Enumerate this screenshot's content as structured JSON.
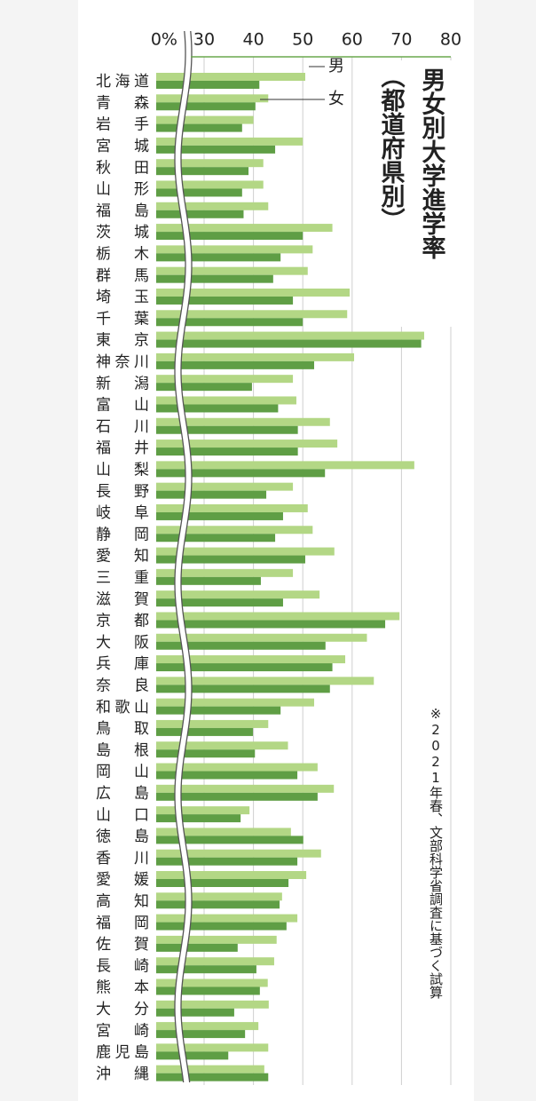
{
  "chart_data": {
    "type": "bar",
    "orientation": "horizontal",
    "title": "男女別大学進学率",
    "subtitle": "（都道府県別）",
    "note": "※2021年春、文部科学省調査に基づく試算",
    "categories": [
      "北海道",
      "青森",
      "岩手",
      "宮城",
      "秋田",
      "山形",
      "福島",
      "茨城",
      "栃木",
      "群馬",
      "埼玉",
      "千葉",
      "東京",
      "神奈川",
      "新潟",
      "富山",
      "石川",
      "福井",
      "山梨",
      "長野",
      "岐阜",
      "静岡",
      "愛知",
      "三重",
      "滋賀",
      "京都",
      "大阪",
      "兵庫",
      "奈良",
      "和歌山",
      "鳥取",
      "島根",
      "岡山",
      "広島",
      "山口",
      "徳島",
      "香川",
      "愛媛",
      "高知",
      "福岡",
      "佐賀",
      "長崎",
      "熊本",
      "大分",
      "宮崎",
      "鹿児島",
      "沖縄"
    ],
    "series": [
      {
        "name": "男",
        "color": "#b3d785",
        "values": [
          50.5,
          43,
          40,
          50,
          42,
          42,
          43,
          56,
          52,
          51,
          59.5,
          59,
          74.6,
          60.4,
          48,
          48.7,
          55.5,
          57,
          72.6,
          48,
          51,
          52,
          56.4,
          48,
          53.4,
          69.6,
          63,
          58.6,
          64.4,
          52.3,
          43,
          47,
          53,
          56.3,
          39.2,
          47.6,
          53.7,
          50.7,
          45.8,
          48.9,
          44.7,
          44.2,
          42.9,
          43.1,
          41,
          43,
          42.2
        ]
      },
      {
        "name": "女",
        "color": "#5f9e45",
        "values": [
          41.2,
          40.4,
          37.7,
          44.4,
          39,
          37.7,
          38,
          50,
          45.5,
          44,
          48,
          50,
          74,
          52.3,
          39.7,
          45,
          49,
          49,
          54.5,
          42.6,
          46,
          44.4,
          50.5,
          41.5,
          46,
          66.7,
          54.6,
          56,
          55.5,
          45.5,
          39.9,
          40.3,
          48.9,
          53,
          37.4,
          50.1,
          48.9,
          47.1,
          45.3,
          46.7,
          36.8,
          40.6,
          41.3,
          36.1,
          38.3,
          34.9,
          43
        ]
      }
    ],
    "xlim": [
      0,
      80
    ],
    "xticks": [
      {
        "value": 0,
        "label": "0%"
      },
      30,
      40,
      50,
      60,
      70,
      80
    ],
    "axis_break": [
      0,
      30
    ],
    "grid": true
  }
}
